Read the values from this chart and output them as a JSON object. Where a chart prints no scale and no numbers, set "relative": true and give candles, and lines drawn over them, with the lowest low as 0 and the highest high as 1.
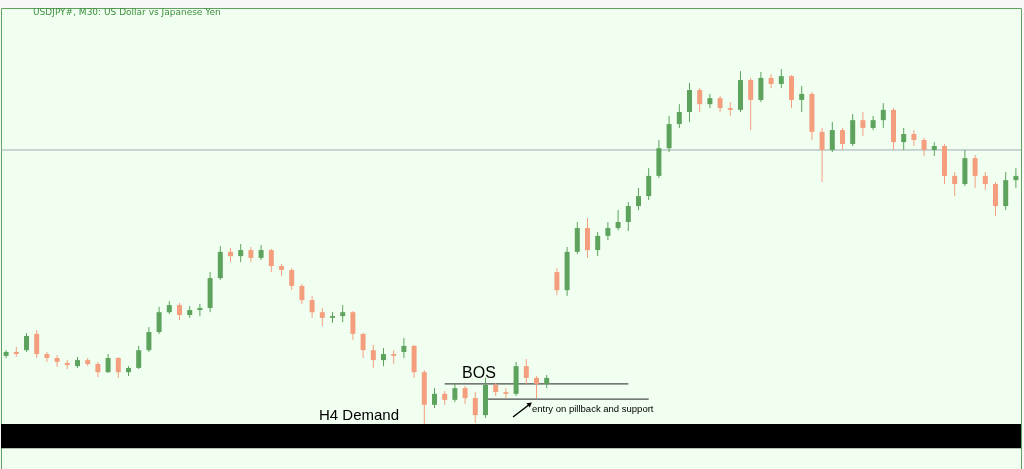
{
  "chart_data": {
    "type": "candlestick",
    "title": "USDJPY#, M30: US Dollar vs Japanese Yen",
    "relative": true,
    "categories": [
      null,
      null,
      null,
      null,
      null,
      null,
      null,
      null,
      null,
      null,
      null,
      null,
      null,
      null,
      null,
      null,
      null,
      null,
      null,
      null,
      null,
      null,
      null,
      null,
      null,
      null,
      null,
      null,
      null,
      null,
      null,
      null,
      null,
      null,
      null,
      null,
      null,
      null,
      null,
      null,
      null,
      null,
      null,
      null,
      null,
      null,
      null,
      null,
      null,
      null,
      null,
      null,
      null,
      null,
      null,
      null,
      null,
      null,
      null,
      null,
      null,
      null,
      null,
      null,
      null,
      null,
      null,
      null,
      null,
      null,
      null,
      null,
      null,
      null,
      null,
      null,
      null,
      null,
      null,
      null,
      null,
      null,
      null,
      null,
      null,
      null,
      null,
      null,
      null,
      null,
      null,
      null,
      null,
      null,
      null,
      null,
      null,
      null,
      null,
      null
    ],
    "ohlc": [
      [
        0.192,
        0.208,
        0.186,
        0.203
      ],
      [
        0.203,
        0.217,
        0.189,
        0.197
      ],
      [
        0.208,
        0.256,
        0.203,
        0.248
      ],
      [
        0.254,
        0.265,
        0.186,
        0.197
      ],
      [
        0.197,
        0.203,
        0.175,
        0.186
      ],
      [
        0.186,
        0.194,
        0.161,
        0.175
      ],
      [
        0.172,
        0.18,
        0.155,
        0.166
      ],
      [
        0.163,
        0.189,
        0.158,
        0.18
      ],
      [
        0.18,
        0.186,
        0.163,
        0.169
      ],
      [
        0.169,
        0.175,
        0.132,
        0.146
      ],
      [
        0.146,
        0.197,
        0.144,
        0.186
      ],
      [
        0.186,
        0.189,
        0.13,
        0.146
      ],
      [
        0.146,
        0.163,
        0.135,
        0.158
      ],
      [
        0.158,
        0.22,
        0.155,
        0.208
      ],
      [
        0.208,
        0.273,
        0.203,
        0.259
      ],
      [
        0.259,
        0.33,
        0.254,
        0.315
      ],
      [
        0.315,
        0.346,
        0.31,
        0.335
      ],
      [
        0.335,
        0.341,
        0.293,
        0.307
      ],
      [
        0.307,
        0.332,
        0.299,
        0.321
      ],
      [
        0.321,
        0.338,
        0.304,
        0.327
      ],
      [
        0.327,
        0.428,
        0.315,
        0.411
      ],
      [
        0.411,
        0.501,
        0.406,
        0.485
      ],
      [
        0.485,
        0.496,
        0.456,
        0.473
      ],
      [
        0.473,
        0.507,
        0.456,
        0.49
      ],
      [
        0.49,
        0.499,
        0.456,
        0.468
      ],
      [
        0.468,
        0.504,
        0.462,
        0.49
      ],
      [
        0.49,
        0.493,
        0.428,
        0.445
      ],
      [
        0.445,
        0.451,
        0.417,
        0.434
      ],
      [
        0.434,
        0.439,
        0.377,
        0.389
      ],
      [
        0.389,
        0.394,
        0.338,
        0.349
      ],
      [
        0.349,
        0.361,
        0.299,
        0.315
      ],
      [
        0.315,
        0.327,
        0.276,
        0.299
      ],
      [
        0.299,
        0.315,
        0.285,
        0.304
      ],
      [
        0.304,
        0.335,
        0.287,
        0.315
      ],
      [
        0.315,
        0.318,
        0.237,
        0.254
      ],
      [
        0.254,
        0.256,
        0.186,
        0.208
      ],
      [
        0.208,
        0.223,
        0.158,
        0.18
      ],
      [
        0.18,
        0.214,
        0.163,
        0.197
      ],
      [
        0.197,
        0.208,
        0.169,
        0.192
      ],
      [
        0.203,
        0.242,
        0.186,
        0.22
      ],
      [
        0.22,
        0.223,
        0.13,
        0.146
      ],
      [
        0.146,
        0.152,
        0.0,
        0.054
      ],
      [
        0.054,
        0.101,
        0.045,
        0.085
      ],
      [
        0.085,
        0.093,
        0.054,
        0.068
      ],
      [
        0.068,
        0.115,
        0.062,
        0.101
      ],
      [
        0.101,
        0.107,
        0.056,
        0.073
      ],
      [
        0.073,
        0.09,
        0.003,
        0.025
      ],
      [
        0.025,
        0.13,
        0.017,
        0.11
      ],
      [
        0.11,
        0.115,
        0.079,
        0.09
      ],
      [
        0.09,
        0.101,
        0.073,
        0.085
      ],
      [
        0.085,
        0.175,
        0.079,
        0.163
      ],
      [
        0.163,
        0.183,
        0.113,
        0.13
      ],
      [
        0.13,
        0.135,
        0.073,
        0.113
      ],
      [
        0.113,
        0.138,
        0.101,
        0.13
      ],
      [
        0.428,
        0.439,
        0.363,
        0.377
      ],
      [
        0.377,
        0.499,
        0.361,
        0.485
      ],
      [
        0.485,
        0.569,
        0.479,
        0.552
      ],
      [
        0.552,
        0.58,
        0.468,
        0.49
      ],
      [
        0.49,
        0.541,
        0.473,
        0.53
      ],
      [
        0.53,
        0.569,
        0.518,
        0.552
      ],
      [
        0.552,
        0.603,
        0.546,
        0.569
      ],
      [
        0.569,
        0.625,
        0.544,
        0.614
      ],
      [
        0.614,
        0.665,
        0.603,
        0.642
      ],
      [
        0.642,
        0.721,
        0.631,
        0.699
      ],
      [
        0.699,
        0.8,
        0.693,
        0.777
      ],
      [
        0.777,
        0.868,
        0.766,
        0.845
      ],
      [
        0.845,
        0.901,
        0.834,
        0.879
      ],
      [
        0.879,
        0.961,
        0.851,
        0.941
      ],
      [
        0.941,
        0.946,
        0.879,
        0.901
      ],
      [
        0.901,
        0.93,
        0.89,
        0.918
      ],
      [
        0.918,
        0.924,
        0.879,
        0.89
      ],
      [
        0.89,
        0.907,
        0.868,
        0.885
      ],
      [
        0.885,
        0.994,
        0.879,
        0.969
      ],
      [
        0.969,
        0.975,
        0.828,
        0.913
      ],
      [
        0.913,
        0.992,
        0.907,
        0.975
      ],
      [
        0.975,
        0.986,
        0.946,
        0.958
      ],
      [
        0.958,
        1.0,
        0.946,
        0.98
      ],
      [
        0.98,
        0.983,
        0.89,
        0.913
      ],
      [
        0.913,
        0.952,
        0.879,
        0.93
      ],
      [
        0.93,
        0.935,
        0.8,
        0.823
      ],
      [
        0.823,
        0.834,
        0.682,
        0.772
      ],
      [
        0.772,
        0.851,
        0.766,
        0.828
      ],
      [
        0.828,
        0.834,
        0.772,
        0.789
      ],
      [
        0.789,
        0.873,
        0.783,
        0.856
      ],
      [
        0.856,
        0.879,
        0.811,
        0.834
      ],
      [
        0.834,
        0.868,
        0.828,
        0.856
      ],
      [
        0.856,
        0.904,
        0.834,
        0.885
      ],
      [
        0.885,
        0.89,
        0.772,
        0.794
      ],
      [
        0.794,
        0.834,
        0.772,
        0.817
      ],
      [
        0.817,
        0.828,
        0.783,
        0.8
      ],
      [
        0.8,
        0.806,
        0.755,
        0.772
      ],
      [
        0.772,
        0.794,
        0.755,
        0.783
      ],
      [
        0.783,
        0.789,
        0.676,
        0.699
      ],
      [
        0.699,
        0.71,
        0.642,
        0.676
      ],
      [
        0.676,
        0.772,
        0.67,
        0.749
      ],
      [
        0.749,
        0.758,
        0.665,
        0.699
      ],
      [
        0.699,
        0.71,
        0.659,
        0.676
      ],
      [
        0.676,
        0.682,
        0.586,
        0.614
      ],
      [
        0.614,
        0.71,
        0.603,
        0.687
      ],
      [
        0.687,
        0.721,
        0.665,
        0.699
      ]
    ],
    "colors": [
      "#5da35d",
      "#f59e7e",
      "#5da35d",
      "#f59e7e",
      "#f59e7e",
      "#f59e7e",
      "#f59e7e",
      "#5da35d",
      "#f59e7e",
      "#f59e7e",
      "#5da35d",
      "#f59e7e",
      "#5da35d",
      "#5da35d",
      "#5da35d",
      "#5da35d",
      "#5da35d",
      "#f59e7e",
      "#5da35d",
      "#5da35d",
      "#5da35d",
      "#5da35d",
      "#f59e7e",
      "#5da35d",
      "#f59e7e",
      "#5da35d",
      "#f59e7e",
      "#f59e7e",
      "#f59e7e",
      "#f59e7e",
      "#f59e7e",
      "#f59e7e",
      "#5da35d",
      "#5da35d",
      "#f59e7e",
      "#f59e7e",
      "#f59e7e",
      "#5da35d",
      "#f59e7e",
      "#5da35d",
      "#f59e7e",
      "#f59e7e",
      "#5da35d",
      "#f59e7e",
      "#5da35d",
      "#f59e7e",
      "#f59e7e",
      "#5da35d",
      "#f59e7e",
      "#f59e7e",
      "#5da35d",
      "#f59e7e",
      "#f59e7e",
      "#5da35d",
      "#f59e7e",
      "#5da35d",
      "#5da35d",
      "#f59e7e",
      "#5da35d",
      "#5da35d",
      "#5da35d",
      "#5da35d",
      "#5da35d",
      "#5da35d",
      "#5da35d",
      "#5da35d",
      "#5da35d",
      "#5da35d",
      "#f59e7e",
      "#5da35d",
      "#f59e7e",
      "#f59e7e",
      "#5da35d",
      "#f59e7e",
      "#5da35d",
      "#f59e7e",
      "#5da35d",
      "#f59e7e",
      "#5da35d",
      "#f59e7e",
      "#f59e7e",
      "#5da35d",
      "#f59e7e",
      "#5da35d",
      "#f59e7e",
      "#5da35d",
      "#5da35d",
      "#f59e7e",
      "#5da35d",
      "#f59e7e",
      "#f59e7e",
      "#5da35d",
      "#f59e7e",
      "#f59e7e",
      "#5da35d",
      "#f59e7e",
      "#f59e7e",
      "#f59e7e",
      "#5da35d",
      "#5da35d"
    ],
    "series": [
      {
        "type": "line",
        "color": "#4d4d4d",
        "values": [
          null,
          null,
          null,
          null,
          null,
          null,
          null,
          null,
          null,
          null,
          null,
          null,
          null,
          null,
          null,
          null,
          null,
          null,
          null,
          null,
          null,
          null,
          null,
          null,
          null,
          null,
          null,
          null,
          null,
          null,
          null,
          null,
          null,
          null,
          null,
          null,
          null,
          null,
          null,
          null,
          null,
          null,
          null,
          0.113,
          0.113,
          0.113,
          0.113,
          0.113,
          0.113,
          0.113,
          0.113,
          0.113,
          0.113,
          0.113,
          0.113,
          0.113,
          0.113,
          0.113,
          0.113,
          0.113,
          0.113,
          0.113,
          null,
          null,
          null,
          null,
          null,
          null,
          null,
          null,
          null,
          null,
          null,
          null,
          null,
          null,
          null,
          null,
          null,
          null,
          null,
          null,
          null,
          null,
          null,
          null,
          null,
          null,
          null,
          null,
          null,
          null,
          null,
          null,
          null,
          null,
          null,
          null,
          null,
          null
        ]
      },
      {
        "type": "line",
        "color": "#4d4d4d",
        "values": [
          null,
          null,
          null,
          null,
          null,
          null,
          null,
          null,
          null,
          null,
          null,
          null,
          null,
          null,
          null,
          null,
          null,
          null,
          null,
          null,
          null,
          null,
          null,
          null,
          null,
          null,
          null,
          null,
          null,
          null,
          null,
          null,
          null,
          null,
          null,
          null,
          null,
          null,
          null,
          null,
          null,
          null,
          null,
          null,
          null,
          null,
          null,
          0.07,
          0.07,
          0.07,
          0.07,
          0.07,
          0.07,
          0.07,
          0.07,
          0.07,
          0.07,
          0.07,
          0.07,
          0.07,
          0.07,
          0.07,
          0.07,
          0.07,
          null,
          null,
          null,
          null,
          null,
          null,
          null,
          null,
          null,
          null,
          null,
          null,
          null,
          null,
          null,
          null,
          null,
          null,
          null,
          null,
          null,
          null,
          null,
          null,
          null,
          null,
          null,
          null,
          null,
          null,
          null,
          null,
          null,
          null,
          null,
          null
        ]
      }
    ],
    "ref_lines": [
      {
        "axis": "y",
        "value": 0.772,
        "color": "#a0abb8"
      }
    ],
    "bands": [
      {
        "axis": "y",
        "from": -0.068,
        "to": 0,
        "color": "#000000"
      }
    ],
    "annotations": [
      "BOS",
      "H4 Demand",
      "entry on pillback and support"
    ]
  }
}
